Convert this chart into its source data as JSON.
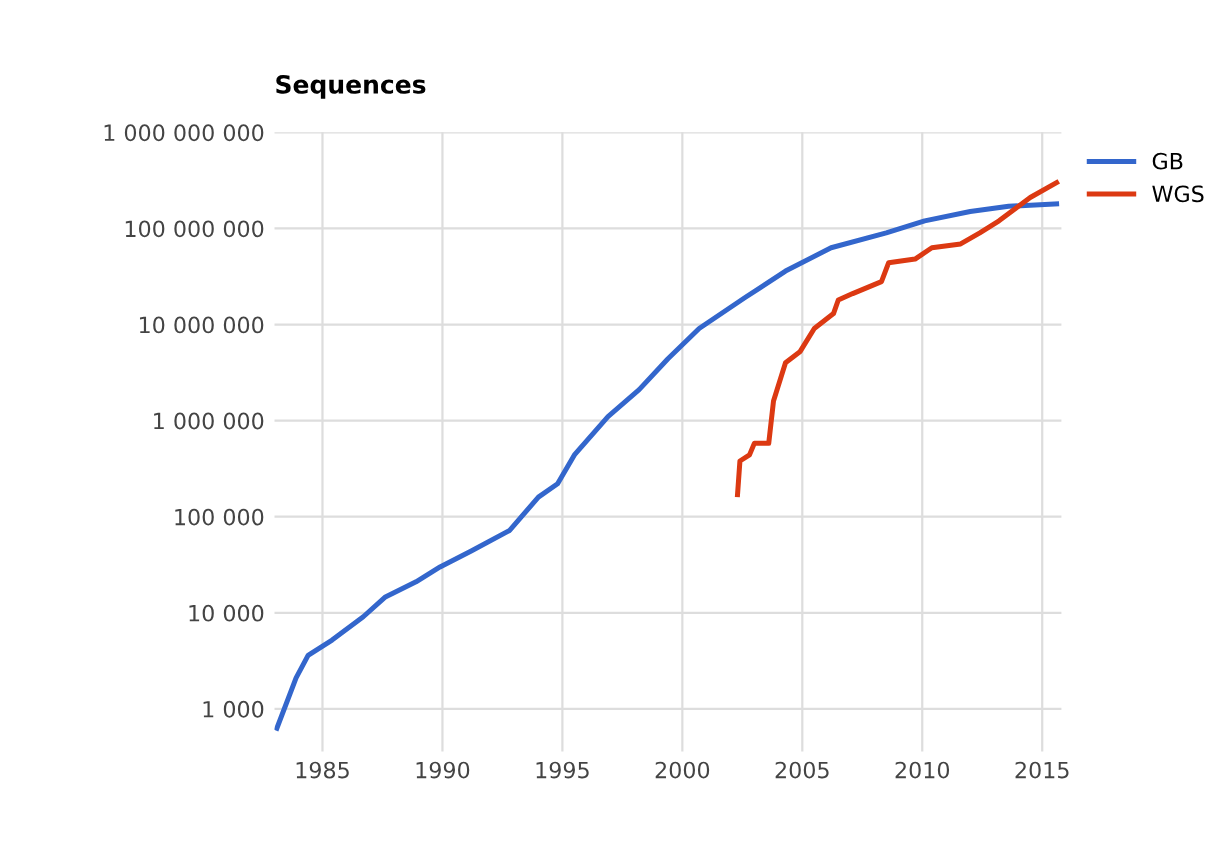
{
  "chart_data": {
    "type": "line",
    "title": "Sequences",
    "log": "y",
    "grid": true,
    "legend": "top right",
    "xlim": [
      1983,
      2015.8
    ],
    "xticks": [
      1985,
      1990,
      1995,
      2000,
      2005,
      2010,
      2015
    ],
    "ylim": [
      360,
      1000000000
    ],
    "yticks": [
      {
        "value": 1000,
        "label": "1 000"
      },
      {
        "value": 10000,
        "label": "10 000"
      },
      {
        "value": 100000,
        "label": "100 000"
      },
      {
        "value": 1000000,
        "label": "1 000 000"
      },
      {
        "value": 10000000,
        "label": "10 000 000"
      },
      {
        "value": 100000000,
        "label": "100 000 000"
      },
      {
        "value": 1000000000,
        "label": "1 000 000 000"
      }
    ],
    "series": [
      {
        "name": "GB",
        "color": "#3366cc",
        "x": [
          1983.1,
          1983.9,
          1984.4,
          1985.4,
          1986.7,
          1987.6,
          1988.9,
          1989.9,
          1991.2,
          1992.8,
          1994.0,
          1994.8,
          1995.5,
          1996.9,
          1998.2,
          1999.4,
          2000.7,
          2002.6,
          2004.3,
          2006.2,
          2008.5,
          2010.1,
          2012.0,
          2013.6,
          2015.6
        ],
        "values": [
          630,
          2100,
          3600,
          5200,
          9100,
          14500,
          21000,
          30000,
          44000,
          72000,
          160000,
          220000,
          440000,
          1100000,
          2100000,
          4400000,
          9100000,
          19000000,
          36000000,
          63000000,
          90000000,
          120000000,
          150000000,
          170000000,
          180000000
        ]
      },
      {
        "name": "WGS",
        "color": "#dc3912",
        "x": [
          2002.3,
          2002.4,
          2002.8,
          2003.0,
          2003.6,
          2003.8,
          2004.3,
          2004.9,
          2005.5,
          2006.3,
          2006.5,
          2007.1,
          2008.3,
          2008.6,
          2009.7,
          2010.4,
          2011.6,
          2012.4,
          2013.2,
          2014.5,
          2015.6
        ],
        "values": [
          170000,
          380000,
          440000,
          580000,
          580000,
          1600000,
          4000000,
          5200000,
          9100000,
          13000000,
          18000000,
          21000000,
          28000000,
          44000000,
          48000000,
          63000000,
          69000000,
          90000000,
          120000000,
          210000000,
          300000000
        ]
      }
    ]
  }
}
